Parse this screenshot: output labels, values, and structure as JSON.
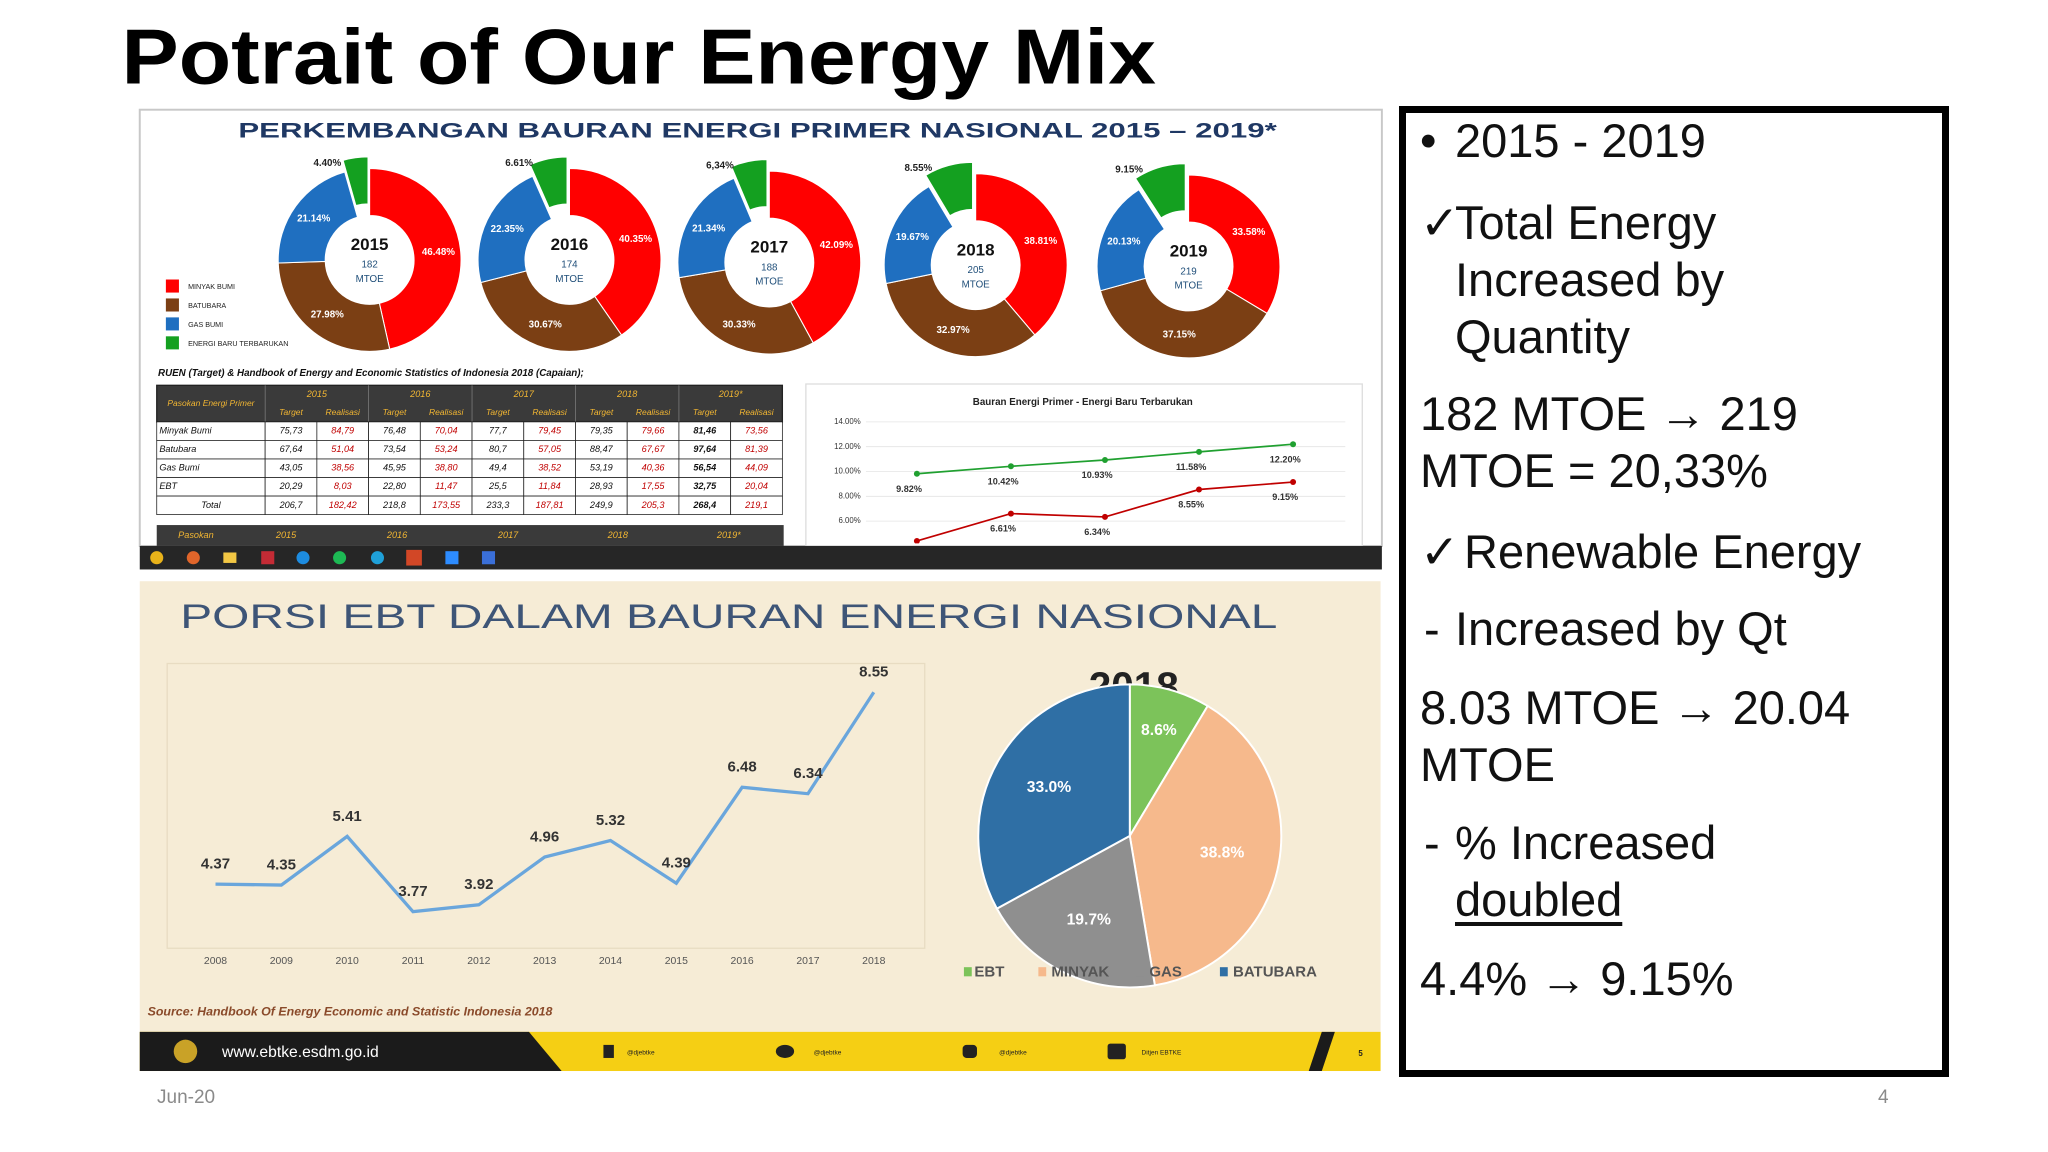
{
  "title": "Potrait of Our Energy Mix",
  "top_panel": {
    "caption": "RUEN (Target) & Handbook of Energy and Economic Statistics of Indonesia 2018 (Capaian);",
    "table": {
      "header": [
        "Pasokan Energi Primer",
        "2015",
        "2016",
        "2017",
        "2018",
        "2019*"
      ],
      "subheader": [
        "Target",
        "Realisasi"
      ],
      "rows": [
        [
          "Minyak Bumi",
          "75,73",
          "84,79",
          "76,48",
          "70,04",
          "77,7",
          "79,45",
          "79,35",
          "79,66",
          "81,46",
          "73,56"
        ],
        [
          "Batubara",
          "67,64",
          "51,04",
          "73,54",
          "53,24",
          "80,7",
          "57,05",
          "88,47",
          "67,67",
          "97,64",
          "81,39"
        ],
        [
          "Gas Bumi",
          "43,05",
          "38,56",
          "45,95",
          "38,80",
          "49,4",
          "38,52",
          "53,19",
          "40,36",
          "56,54",
          "44,09"
        ],
        [
          "EBT",
          "20,29",
          "8,03",
          "22,80",
          "11,47",
          "25,5",
          "11,84",
          "28,93",
          "17,55",
          "32,75",
          "20,04"
        ],
        [
          "Total",
          "206,7",
          "182,42",
          "218,8",
          "173,55",
          "233,3",
          "187,81",
          "249,9",
          "205,3",
          "268,4",
          "219,1"
        ]
      ]
    },
    "table2_header": [
      "Pasokan",
      "2015",
      "2016",
      "2017",
      "2018",
      "2019*"
    ]
  },
  "chart_data": [
    {
      "type": "donut",
      "title": "PERKEMBANGAN BAURAN ENERGI PRIMER NASIONAL 2015 – 2019*",
      "categories": [
        "MINYAK BUMI",
        "BATUBARA",
        "GAS BUMI",
        "ENERGI BARU TERBARUKAN"
      ],
      "colors": [
        "#ff0000",
        "#7b3f14",
        "#1f6fc0",
        "#14a020"
      ],
      "series": [
        {
          "name": "2015",
          "total": "182",
          "unit": "MTOE",
          "values": [
            46.48,
            27.98,
            21.14,
            4.4
          ],
          "value_labels": [
            "46.48%",
            "27.98%",
            "21.14%",
            "4.40%"
          ]
        },
        {
          "name": "2016",
          "total": "174",
          "unit": "MTOE",
          "values": [
            40.35,
            30.67,
            22.35,
            6.61
          ],
          "value_labels": [
            "40.35%",
            "30.67%",
            "22.35%",
            "6.61%"
          ]
        },
        {
          "name": "2017",
          "total": "188",
          "unit": "MTOE",
          "values": [
            42.09,
            30.33,
            21.34,
            6.34
          ],
          "value_labels": [
            "42.09%",
            "30.33%",
            "21.34%",
            "6,34%"
          ]
        },
        {
          "name": "2018",
          "total": "205",
          "unit": "MTOE",
          "values": [
            38.81,
            32.97,
            19.67,
            8.55
          ],
          "value_labels": [
            "38.81%",
            "32.97%",
            "19.67%",
            "8.55%"
          ]
        },
        {
          "name": "2019",
          "total": "219",
          "unit": "MTOE",
          "values": [
            33.58,
            37.15,
            20.13,
            9.15
          ],
          "value_labels": [
            "33.58%",
            "37.15%",
            "20.13%",
            "9.15%"
          ]
        }
      ]
    },
    {
      "type": "line",
      "title": "Bauran Energi Primer - Energi Baru Terbarukan",
      "categories": [
        null,
        null,
        null,
        null,
        null
      ],
      "series": [
        {
          "color": "#20a030",
          "values": [
            9.82,
            10.42,
            10.93,
            11.58,
            12.2
          ],
          "value_labels": [
            "9.82%",
            "10.42%",
            "10.93%",
            "11.58%",
            "12.20%"
          ]
        },
        {
          "color": "#c00000",
          "values": [
            4.4,
            6.61,
            6.34,
            8.55,
            9.15
          ],
          "value_labels": [
            null,
            "6.61%",
            "6.34%",
            "8.55%",
            "9.15%"
          ]
        }
      ],
      "ylim": [
        4,
        14
      ],
      "yticks": [
        {
          "value": 14,
          "label": "14.00%"
        },
        {
          "value": 12,
          "label": "12.00%"
        },
        {
          "value": 10,
          "label": "10.00%"
        },
        {
          "value": 8,
          "label": "8.00%"
        },
        {
          "value": 6,
          "label": "6.00%"
        }
      ],
      "grid": true
    },
    {
      "type": "line",
      "title": "PORSI EBT DALAM BAURAN ENERGI NASIONAL",
      "x": [
        2008,
        2009,
        2010,
        2011,
        2012,
        2013,
        2014,
        2015,
        2016,
        2017,
        2018
      ],
      "series": [
        {
          "color": "#6aa6dc",
          "values": [
            4.37,
            4.35,
            5.41,
            3.77,
            3.92,
            4.96,
            5.32,
            4.39,
            6.48,
            6.34,
            8.55
          ]
        }
      ]
    },
    {
      "type": "pie",
      "title": "2018",
      "categories": [
        "EBT",
        "MINYAK",
        "GAS",
        "BATUBARA"
      ],
      "colors": [
        "#7cc35a",
        "#f6b98c",
        "#8f8f8f",
        "#2f6fa5"
      ],
      "values": [
        8.6,
        38.8,
        19.7,
        33.0
      ],
      "value_labels": [
        "8.6%",
        "38.8%",
        "19.7%",
        "33.0%"
      ]
    }
  ],
  "bottom_panel": {
    "source": "Source: Handbook Of Energy Economic and Statistic Indonesia 2018",
    "footer_bar": {
      "website": "www.ebtke.esdm.go.id",
      "handles": [
        "@djebtke",
        "@djebtke",
        "@djebtke"
      ],
      "youtube": "Ditjen EBTKE",
      "page": "5"
    }
  },
  "right_panel": {
    "items": [
      {
        "marker": "•",
        "text": "2015 - 2019"
      },
      {
        "marker": "✓",
        "text": "Total Energy Increased by Quantity"
      },
      {
        "text": "182 MTOE → 219 MTOE = 20,33%"
      },
      {
        "marker": "✓",
        "text": "Renewable Energy"
      },
      {
        "marker": "-",
        "text": "Increased by Qt"
      },
      {
        "text": "8.03 MTOE → 20.04 MTOE"
      },
      {
        "marker": "-",
        "text": "% Increased",
        "emphasis": "doubled"
      },
      {
        "text": "4.4% → 9.15%"
      }
    ]
  },
  "footer": {
    "date": "Jun-20",
    "page": "4"
  }
}
